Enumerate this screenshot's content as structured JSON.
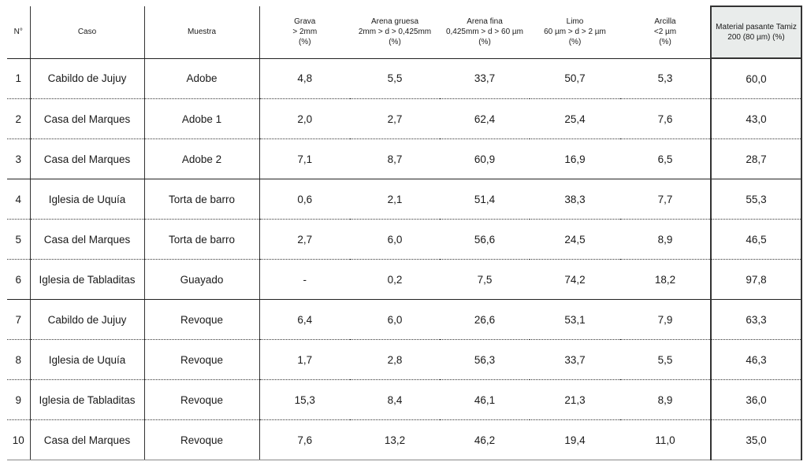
{
  "headers": {
    "n": "N°",
    "caso": "Caso",
    "muestra": "Muestra",
    "grava": [
      "Grava",
      "> 2mm",
      "(%)"
    ],
    "arena_gruesa": [
      "Arena gruesa",
      "2mm > d > 0,425mm",
      "(%)"
    ],
    "arena_fina": [
      "Arena fina",
      "0,425mm > d > 60 µm",
      "(%)"
    ],
    "limo": [
      "Limo",
      "60 µm > d > 2 µm",
      "(%)"
    ],
    "arcilla": [
      "Arcilla",
      "<2 µm",
      "(%)"
    ],
    "material": [
      "Material pasante Tamiz",
      "200 (80 µm) (%)"
    ]
  },
  "rows": [
    {
      "n": "1",
      "caso": "Cabildo de Jujuy",
      "muestra": "Adobe",
      "grava": "4,8",
      "arena_gruesa": "5,5",
      "arena_fina": "33,7",
      "limo": "50,7",
      "arcilla": "5,3",
      "material": "60,0"
    },
    {
      "n": "2",
      "caso": "Casa del Marques",
      "muestra": "Adobe 1",
      "grava": "2,0",
      "arena_gruesa": "2,7",
      "arena_fina": "62,4",
      "limo": "25,4",
      "arcilla": "7,6",
      "material": "43,0"
    },
    {
      "n": "3",
      "caso": "Casa del Marques",
      "muestra": "Adobe 2",
      "grava": "7,1",
      "arena_gruesa": "8,7",
      "arena_fina": "60,9",
      "limo": "16,9",
      "arcilla": "6,5",
      "material": "28,7"
    },
    {
      "n": "4",
      "caso": "Iglesia de Uquía",
      "muestra": "Torta de barro",
      "grava": "0,6",
      "arena_gruesa": "2,1",
      "arena_fina": "51,4",
      "limo": "38,3",
      "arcilla": "7,7",
      "material": "55,3"
    },
    {
      "n": "5",
      "caso": "Casa del Marques",
      "muestra": "Torta de barro",
      "grava": "2,7",
      "arena_gruesa": "6,0",
      "arena_fina": "56,6",
      "limo": "24,5",
      "arcilla": "8,9",
      "material": "46,5"
    },
    {
      "n": "6",
      "caso": "Iglesia de Tabladitas",
      "muestra": "Guayado",
      "grava": "-",
      "arena_gruesa": "0,2",
      "arena_fina": "7,5",
      "limo": "74,2",
      "arcilla": "18,2",
      "material": "97,8"
    },
    {
      "n": "7",
      "caso": "Cabildo de Jujuy",
      "muestra": "Revoque",
      "grava": "6,4",
      "arena_gruesa": "6,0",
      "arena_fina": "26,6",
      "limo": "53,1",
      "arcilla": "7,9",
      "material": "63,3"
    },
    {
      "n": "8",
      "caso": "Iglesia de Uquía",
      "muestra": "Revoque",
      "grava": "1,7",
      "arena_gruesa": "2,8",
      "arena_fina": "56,3",
      "limo": "33,7",
      "arcilla": "5,5",
      "material": "46,3"
    },
    {
      "n": "9",
      "caso": "Iglesia de Tabladitas",
      "muestra": "Revoque",
      "grava": "15,3",
      "arena_gruesa": "8,4",
      "arena_fina": "46,1",
      "limo": "21,3",
      "arcilla": "8,9",
      "material": "36,0"
    },
    {
      "n": "10",
      "caso": "Casa del Marques",
      "muestra": "Revoque",
      "grava": "7,6",
      "arena_gruesa": "13,2",
      "arena_fina": "46,2",
      "limo": "19,4",
      "arcilla": "11,0",
      "material": "35,0"
    }
  ],
  "group_end_rows": [
    3,
    6
  ],
  "colors": {
    "highlight_bg": "#e9eceb",
    "border": "#333333",
    "text": "#1a1a1a"
  }
}
